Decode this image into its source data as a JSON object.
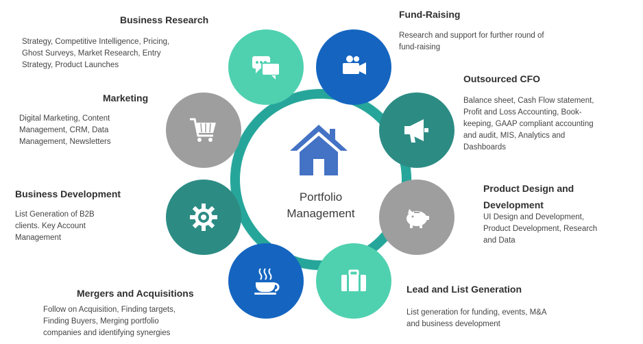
{
  "center": {
    "title": "Portfolio\nManagement",
    "icon": "house-icon"
  },
  "colors": {
    "teal": "#26a69a",
    "mint": "#4fd1b0",
    "blue": "#1565c0",
    "gray": "#9e9e9e",
    "dark_teal": "#2c8c84",
    "hub_ring": "#26a69a",
    "house": "#4472c4"
  },
  "segments": [
    {
      "key": "business_research",
      "icon": "chat-bubbles-icon",
      "color": "mint",
      "title": "Business Research",
      "desc": "Strategy, Competitive Intelligence, Pricing,\nGhost Surveys, Market Research, Entry\nStrategy, Product Launches"
    },
    {
      "key": "fund_raising",
      "icon": "video-camera-icon",
      "color": "blue",
      "title": "Fund-Raising",
      "desc": "Research and support for further round of\nfund-raising"
    },
    {
      "key": "outsourced_cfo",
      "icon": "megaphone-icon",
      "color": "dark_teal",
      "title": "Outsourced CFO",
      "desc": "Balance sheet, Cash Flow statement,\nProfit and Loss Accounting, Book-\nkeeping, GAAP compliant accounting\nand audit, MIS, Analytics and\nDashboards"
    },
    {
      "key": "product_design",
      "icon": "piggy-bank-icon",
      "color": "gray",
      "title": "Product Design and\nDevelopment",
      "desc": "UI Design and Development,\nProduct Development, Research\nand Data"
    },
    {
      "key": "lead_generation",
      "icon": "briefcase-icon",
      "color": "mint",
      "title": "Lead and List Generation",
      "desc": "List generation for funding, events, M&A\nand business development"
    },
    {
      "key": "mergers",
      "icon": "coffee-cup-icon",
      "color": "blue",
      "title": "Mergers and Acquisitions",
      "desc": "Follow on Acquisition, Finding targets,\nFinding Buyers, Merging portfolio\ncompanies and identifying synergies"
    },
    {
      "key": "business_development",
      "icon": "gear-icon",
      "color": "dark_teal",
      "title": "Business Development",
      "desc": "List Generation of B2B\nclients. Key Account\nManagement"
    },
    {
      "key": "marketing",
      "icon": "shopping-cart-icon",
      "color": "gray",
      "title": "Marketing",
      "desc": "Digital Marketing, Content\nManagement, CRM, Data\nManagement, Newsletters"
    }
  ]
}
